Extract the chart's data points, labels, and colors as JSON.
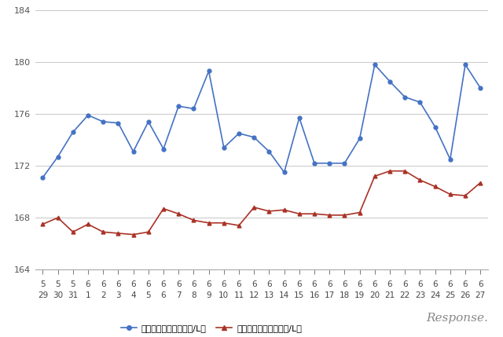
{
  "x_labels_top": [
    "5",
    "5",
    "5",
    "6",
    "6",
    "6",
    "6",
    "6",
    "6",
    "6",
    "6",
    "6",
    "6",
    "6",
    "6",
    "6",
    "6",
    "6",
    "6",
    "6",
    "6",
    "6",
    "6",
    "6",
    "6",
    "6",
    "6",
    "6",
    "6",
    "6"
  ],
  "x_labels_bottom": [
    "29",
    "30",
    "31",
    "1",
    "2",
    "3",
    "4",
    "5",
    "6",
    "7",
    "8",
    "9",
    "10",
    "11",
    "12",
    "13",
    "14",
    "15",
    "16",
    "17",
    "18",
    "19",
    "20",
    "21",
    "22",
    "23",
    "24",
    "25",
    "26",
    "27"
  ],
  "blue_data": [
    171.1,
    172.7,
    174.6,
    175.9,
    175.4,
    175.3,
    173.1,
    175.4,
    173.3,
    176.6,
    176.4,
    179.3,
    173.4,
    174.5,
    174.2,
    173.1,
    171.5,
    175.7,
    172.2,
    172.2,
    172.2,
    174.1,
    179.8,
    178.5,
    177.3,
    176.9,
    175.0,
    172.5,
    179.8,
    178.0
  ],
  "red_data": [
    167.5,
    168.0,
    166.9,
    167.5,
    166.9,
    166.8,
    166.7,
    166.9,
    168.7,
    168.3,
    167.8,
    167.6,
    167.6,
    167.4,
    168.8,
    168.5,
    168.6,
    168.3,
    168.3,
    168.2,
    168.2,
    168.4,
    171.2,
    171.6,
    171.6,
    170.9,
    170.4,
    169.8,
    169.7,
    170.7
  ],
  "blue_color": "#4472C4",
  "red_color": "#A93226",
  "background_color": "#FFFFFF",
  "grid_color": "#CCCCCC",
  "ylim": [
    164,
    184
  ],
  "yticks": [
    164,
    168,
    172,
    176,
    180,
    184
  ],
  "legend_blue": "ハイオク看板価格（円/L）",
  "legend_red": "ハイオク実売価格（円/L）",
  "watermark": "Response."
}
